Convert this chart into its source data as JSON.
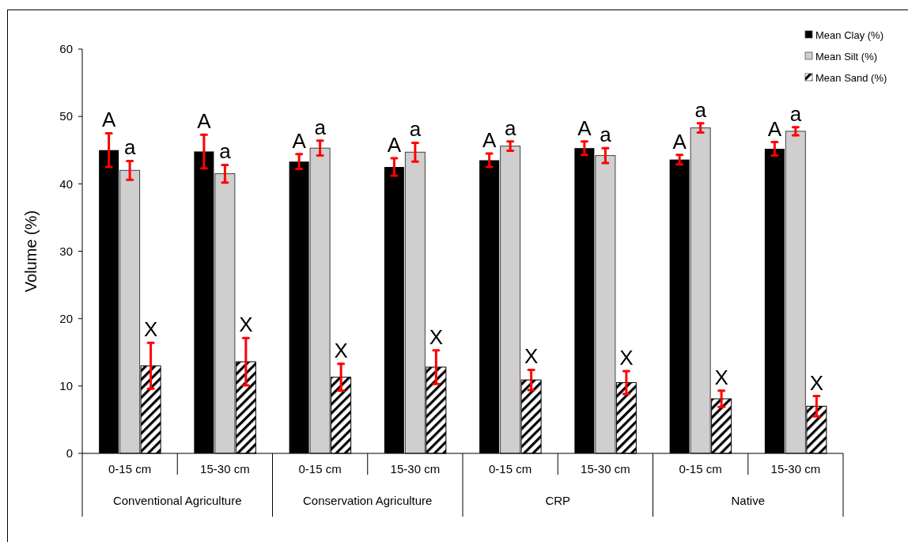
{
  "chart_data": {
    "type": "bar",
    "ylabel": "Volume (%)",
    "categories": [
      "0-15 cm",
      "15-30 cm",
      "0-15 cm",
      "15-30 cm",
      "0-15 cm",
      "15-30 cm",
      "0-15 cm",
      "15-30 cm"
    ],
    "annotations": [
      "Conventional Agriculture",
      "Conservation Agriculture",
      "CRP",
      "Native"
    ],
    "series": [
      {
        "name": "Mean Clay (%)",
        "color": "#000000",
        "values": [
          45.0,
          44.8,
          43.3,
          42.5,
          43.5,
          45.3,
          43.6,
          45.2
        ],
        "errors": [
          2.5,
          2.5,
          1.1,
          1.3,
          1.0,
          1.0,
          0.7,
          1.0
        ],
        "value_labels": [
          "A",
          "A",
          "A",
          "A",
          "A",
          "A",
          "A",
          "A"
        ]
      },
      {
        "name": "Mean Silt (%)",
        "color": "#d0cece",
        "values": [
          42.0,
          41.5,
          45.3,
          44.7,
          45.6,
          44.2,
          48.3,
          47.8
        ],
        "errors": [
          1.4,
          1.3,
          1.1,
          1.4,
          0.7,
          1.1,
          0.7,
          0.6
        ],
        "value_labels": [
          "a",
          "a",
          "a",
          "a",
          "a",
          "a",
          "a",
          "a"
        ]
      },
      {
        "name": "Mean Sand (%)",
        "color": "#000000",
        "values": [
          13.0,
          13.6,
          11.3,
          12.8,
          10.9,
          10.5,
          8.1,
          7.0
        ],
        "errors": [
          3.4,
          3.5,
          2.0,
          2.5,
          1.5,
          1.7,
          1.2,
          1.5
        ],
        "value_labels": [
          "X",
          "X",
          "X",
          "X",
          "X",
          "X",
          "X",
          "X"
        ]
      }
    ],
    "ylim": [
      0,
      60
    ],
    "yticks": [
      0,
      10,
      20,
      30,
      40,
      50,
      60
    ],
    "grid": false,
    "legend": "top right"
  }
}
